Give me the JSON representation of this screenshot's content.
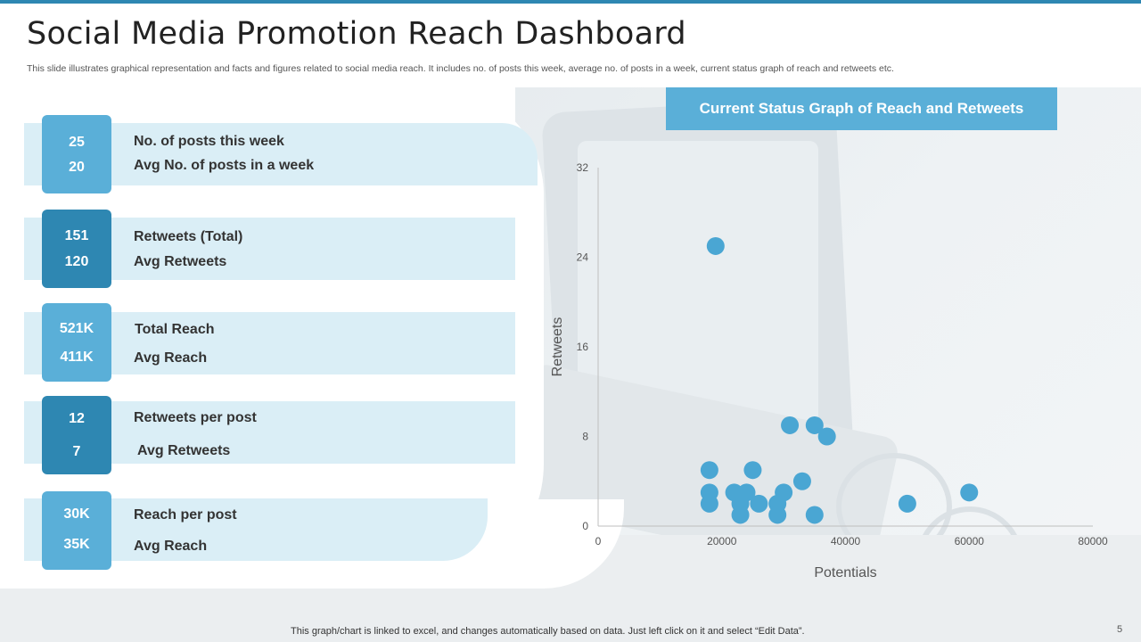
{
  "header": {
    "title": "Social Media Promotion Reach Dashboard",
    "subtitle": "This slide illustrates graphical representation and facts and figures related to social media reach. It includes no. of posts this week, average no. of posts in a week, current status graph of reach and retweets etc."
  },
  "stats": [
    {
      "value1": "25",
      "value2": "20",
      "label1": "No. of posts this week",
      "label2": "Avg No. of posts in a week"
    },
    {
      "value1": "151",
      "value2": "120",
      "label1": "Retweets (Total)",
      "label2": "Avg Retweets"
    },
    {
      "value1": "521K",
      "value2": "411K",
      "label1": "Total Reach",
      "label2": "Avg Reach"
    },
    {
      "value1": "12",
      "value2": "7",
      "label1": "Retweets per post",
      "label2": "Avg Retweets"
    },
    {
      "value1": "30K",
      "value2": "35K",
      "label1": "Reach per post",
      "label2": "Avg Reach"
    }
  ],
  "chart_header": "Current Status Graph of Reach and Retweets",
  "chart_data": {
    "type": "scatter",
    "title": "",
    "xlabel": "Potentials",
    "ylabel": "Retweets",
    "xlim": [
      0,
      80000
    ],
    "ylim": [
      0,
      32
    ],
    "xticks": [
      "0",
      "20000",
      "40000",
      "60000",
      "80000"
    ],
    "yticks": [
      "0",
      "8",
      "16",
      "24",
      "32"
    ],
    "grid": false,
    "color": "#4aa6d3",
    "points": [
      {
        "x": 19000,
        "y": 25
      },
      {
        "x": 31000,
        "y": 9
      },
      {
        "x": 35000,
        "y": 9
      },
      {
        "x": 37000,
        "y": 8
      },
      {
        "x": 18000,
        "y": 5
      },
      {
        "x": 25000,
        "y": 5
      },
      {
        "x": 33000,
        "y": 4
      },
      {
        "x": 18000,
        "y": 3
      },
      {
        "x": 22000,
        "y": 3
      },
      {
        "x": 24000,
        "y": 3
      },
      {
        "x": 30000,
        "y": 3
      },
      {
        "x": 60000,
        "y": 3
      },
      {
        "x": 18000,
        "y": 2
      },
      {
        "x": 23000,
        "y": 2
      },
      {
        "x": 26000,
        "y": 2
      },
      {
        "x": 29000,
        "y": 2
      },
      {
        "x": 50000,
        "y": 2
      },
      {
        "x": 23000,
        "y": 1
      },
      {
        "x": 29000,
        "y": 1
      },
      {
        "x": 35000,
        "y": 1
      }
    ]
  },
  "footer": "This graph/chart is linked to excel,  and changes automatically based on data. Just left click on it and select “Edit Data”.",
  "page_number": "5"
}
